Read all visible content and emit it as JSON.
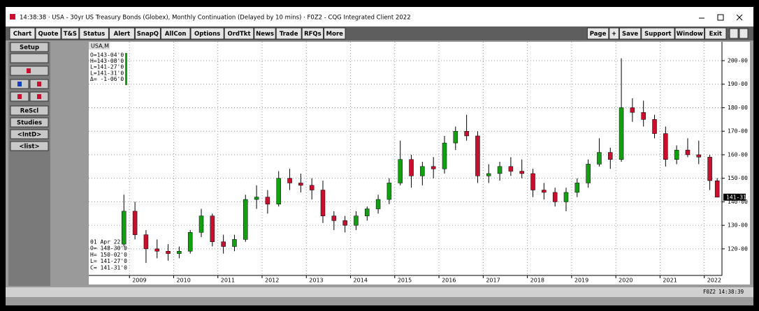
{
  "window": {
    "title": "14:38:38 · USA - 30yr US Treasury Bonds (Globex), Monthly Continuation (Delayed by 10 mins) · F0Z2 - CQG Integrated Client 2022"
  },
  "toolbar": {
    "left": [
      "Chart",
      "Quote",
      "T&S",
      "Status",
      "Alert",
      "SnapQ",
      "AllCon",
      "Options",
      "OrdTkt",
      "News",
      "Trade",
      "RFQs",
      "More"
    ],
    "right": [
      "Page",
      "+",
      "Save",
      "Support",
      "Window",
      "Exit"
    ]
  },
  "side_panel": {
    "top": "Setup",
    "bottom": [
      "ReScl",
      "Studies",
      "<IntD>",
      "<list>"
    ]
  },
  "chart_tab": "USA,M",
  "status_bar": [
    "F0Z2",
    "14:38:39"
  ],
  "chart_data": {
    "type": "candlestick",
    "info_top": [
      "O=143-04'0",
      "H=143-08'0",
      "L=141-27'0",
      "L=141-31'0",
      "Δ= -1-06'0"
    ],
    "info_bottom": [
      "01 Apr 22",
      "O= 148-30'0",
      "H= 150-02'0",
      "L= 141-27'0",
      "C= 141-31'0"
    ],
    "last_price": {
      "value": 141.96875,
      "label": "141-31"
    },
    "up_color": "#10a010",
    "down_color": "#c8102e",
    "x": [
      2008.875,
      2009.125,
      2009.375,
      2009.625,
      2009.875,
      2010.125,
      2010.375,
      2010.625,
      2010.875,
      2011.125,
      2011.375,
      2011.625,
      2011.875,
      2012.125,
      2012.375,
      2012.625,
      2012.875,
      2013.125,
      2013.375,
      2013.625,
      2013.875,
      2014.125,
      2014.375,
      2014.625,
      2014.875,
      2015.125,
      2015.375,
      2015.625,
      2015.875,
      2016.125,
      2016.375,
      2016.625,
      2016.875,
      2017.125,
      2017.375,
      2017.625,
      2017.875,
      2018.125,
      2018.375,
      2018.625,
      2018.875,
      2019.125,
      2019.375,
      2019.625,
      2019.875,
      2020.125,
      2020.375,
      2020.625,
      2020.875,
      2021.125,
      2021.375,
      2021.625,
      2021.875,
      2022.125,
      2022.292
    ],
    "open": [
      122,
      136,
      126,
      120,
      119,
      118,
      119,
      127,
      134,
      123,
      121,
      124,
      141,
      142,
      139,
      150,
      148,
      147,
      145,
      134,
      132,
      130,
      134,
      137,
      141,
      148,
      158,
      151,
      155,
      154,
      165,
      170,
      168,
      151,
      152,
      155,
      153,
      152,
      145,
      144,
      140,
      144,
      148,
      156,
      161,
      158,
      180,
      178,
      175,
      169,
      158,
      162,
      160,
      159,
      148.9375
    ],
    "high": [
      143,
      140,
      128,
      124,
      122,
      121,
      128,
      137,
      135,
      126,
      126,
      143,
      147,
      145,
      153,
      154,
      152,
      150,
      149,
      136,
      134,
      136,
      138,
      143,
      150,
      166,
      160,
      157,
      159,
      168,
      172,
      177,
      170,
      156,
      157,
      159,
      158,
      154,
      148,
      146,
      146,
      150,
      158,
      167,
      163,
      201,
      184,
      183,
      177,
      172,
      164,
      167,
      166,
      160,
      150.0625
    ],
    "low": [
      121,
      124,
      114,
      116,
      115,
      116,
      118,
      125,
      121,
      118,
      119,
      123,
      137,
      135,
      138,
      145,
      144,
      141,
      131,
      128,
      127,
      128,
      132,
      135,
      139,
      147,
      146,
      147,
      150,
      152,
      162,
      166,
      148,
      148,
      149,
      151,
      150,
      142,
      141,
      138,
      136,
      142,
      146,
      155,
      154,
      157,
      174,
      172,
      167,
      155,
      156,
      159,
      156,
      145,
      141.84375
    ],
    "close": [
      136,
      126,
      120,
      119,
      118,
      119,
      127,
      134,
      123,
      121,
      124,
      141,
      142,
      139,
      150,
      148,
      147,
      145,
      134,
      132,
      130,
      134,
      137,
      141,
      148,
      158,
      151,
      155,
      154,
      165,
      170,
      168,
      151,
      152,
      155,
      153,
      152,
      145,
      144,
      140,
      144,
      148,
      156,
      161,
      158,
      180,
      178,
      175,
      169,
      158,
      162,
      160,
      159,
      149,
      141.96875
    ],
    "xlim": [
      2008.08,
      2022.4
    ],
    "xticks": [
      2009,
      2010,
      2011,
      2012,
      2013,
      2014,
      2015,
      2016,
      2017,
      2018,
      2019,
      2020,
      2021,
      2022
    ],
    "ylim": [
      108.7,
      208
    ],
    "yticks": [
      {
        "value": 120,
        "label": "120-00"
      },
      {
        "value": 130,
        "label": "130-00"
      },
      {
        "value": 140,
        "label": "140-00"
      },
      {
        "value": 150,
        "label": "150-00"
      },
      {
        "value": 160,
        "label": "160-00"
      },
      {
        "value": 170,
        "label": "170-00"
      },
      {
        "value": 180,
        "label": "180-00"
      },
      {
        "value": 190,
        "label": "190-00"
      },
      {
        "value": 200,
        "label": "200-00"
      }
    ],
    "grid": true
  }
}
